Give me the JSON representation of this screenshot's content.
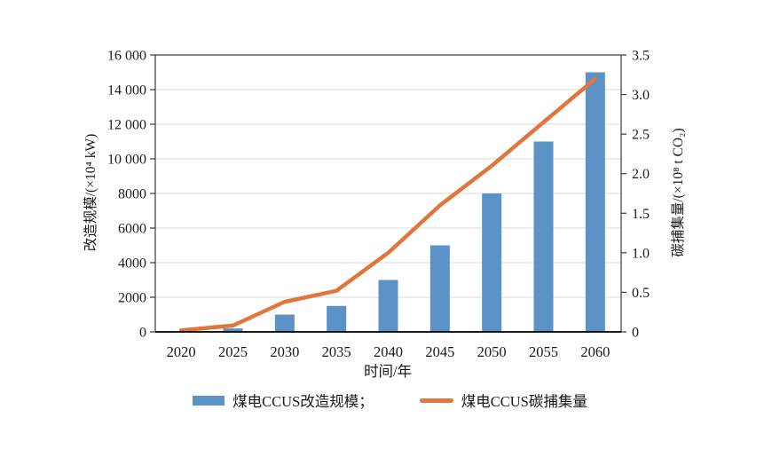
{
  "chart_data": {
    "type": "combo",
    "combo_types": [
      "bar",
      "line"
    ],
    "categories": [
      "2020",
      "2025",
      "2030",
      "2035",
      "2040",
      "2045",
      "2050",
      "2055",
      "2060"
    ],
    "series": [
      {
        "name": "煤电CCUS改造规模",
        "chart_type": "bar",
        "axis": "left",
        "values": [
          0,
          200,
          1000,
          1500,
          3000,
          5000,
          8000,
          11000,
          15000
        ]
      },
      {
        "name": "煤电CCUS碳捕集量",
        "chart_type": "line",
        "axis": "right",
        "values": [
          0.02,
          0.08,
          0.38,
          0.52,
          1.0,
          1.6,
          2.1,
          2.65,
          3.2
        ]
      }
    ],
    "xlabel": "时间/年",
    "left_axis": {
      "title": "改造规模/(×10⁴ kW)",
      "min": 0,
      "max": 16000,
      "ticks": [
        {
          "value": 0,
          "label": "0"
        },
        {
          "value": 2000,
          "label": "2000"
        },
        {
          "value": 4000,
          "label": "4000"
        },
        {
          "value": 6000,
          "label": "6000"
        },
        {
          "value": 8000,
          "label": "8000"
        },
        {
          "value": 10000,
          "label": "10 000"
        },
        {
          "value": 12000,
          "label": "12 000"
        },
        {
          "value": 14000,
          "label": "14 000"
        },
        {
          "value": 16000,
          "label": "16 000"
        }
      ]
    },
    "right_axis": {
      "title": "碳捕集量/(×10⁸ t CO₂)",
      "min": 0,
      "max": 3.5,
      "ticks": [
        {
          "value": 0,
          "label": "0"
        },
        {
          "value": 0.5,
          "label": "0.5"
        },
        {
          "value": 1.0,
          "label": "1.0"
        },
        {
          "value": 1.5,
          "label": "1.5"
        },
        {
          "value": 2.0,
          "label": "2.0"
        },
        {
          "value": 2.5,
          "label": "2.5"
        },
        {
          "value": 3.0,
          "label": "3.0"
        },
        {
          "value": 3.5,
          "label": "3.5"
        }
      ]
    },
    "grid": "horizontal",
    "legend_position": "bottom",
    "colors": {
      "bar": "#5b93c8",
      "line": "#e0763c",
      "grid": "#d9d9d9",
      "axis": "#3a3a3a",
      "baseline": "#000000"
    }
  },
  "legend": {
    "items": [
      {
        "label": "煤电CCUS改造规模；",
        "swatch": "bar"
      },
      {
        "label": "煤电CCUS碳捕集量",
        "swatch": "line"
      }
    ]
  }
}
